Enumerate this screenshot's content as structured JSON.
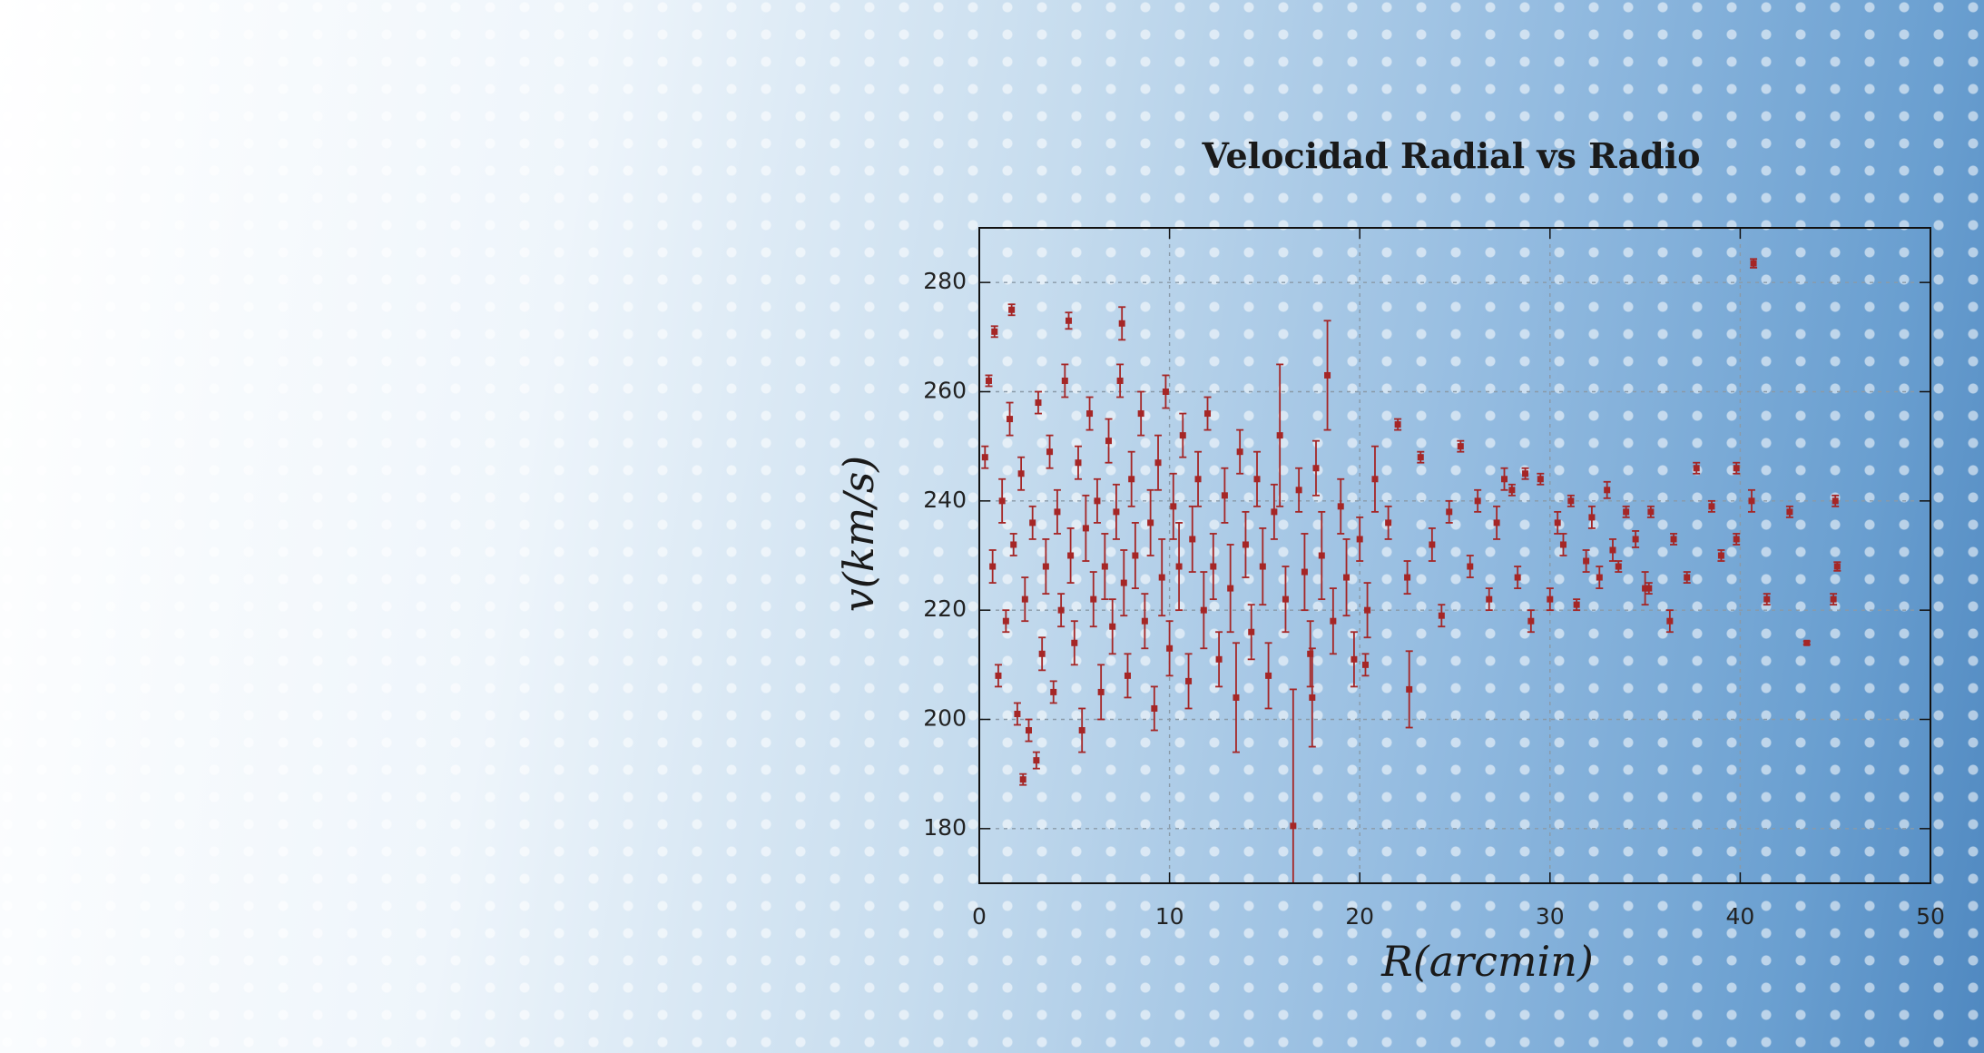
{
  "chart_data": {
    "type": "scatter",
    "title": "Velocidad Radial vs Radio",
    "x_label": "R(arcmin)",
    "y_label": "v(km/s)",
    "color": "#a52626",
    "grid": true,
    "xlim": [
      0,
      50
    ],
    "xticks": [
      0,
      10,
      20,
      30,
      40,
      50
    ],
    "ylim": [
      170,
      290
    ],
    "yticks": [
      180,
      200,
      220,
      240,
      260,
      280
    ],
    "x": [
      0.3,
      0.5,
      0.7,
      1,
      1.2,
      1.4,
      1.6,
      1.8,
      2,
      2.2,
      2.4,
      2.6,
      2.8,
      3.1,
      3.3,
      3.5,
      3.7,
      3.9,
      4.1,
      4.3,
      4.5,
      4.8,
      5,
      5.2,
      5.4,
      5.6,
      5.8,
      6,
      6.2,
      6.4,
      6.6,
      6.8,
      7,
      7.2,
      7.4,
      7.6,
      7.8,
      8,
      8.2,
      8.5,
      8.7,
      9,
      9.2,
      9.4,
      9.6,
      9.8,
      10,
      10.2,
      10.5,
      10.7,
      11,
      11.2,
      11.5,
      11.8,
      12,
      12.3,
      12.6,
      12.9,
      13.2,
      13.5,
      13.7,
      14,
      14.3,
      14.6,
      14.9,
      15.2,
      15.5,
      15.8,
      16.1,
      16.5,
      16.8,
      17.1,
      17.4,
      17.7,
      18,
      18.3,
      18.6,
      19,
      19.3,
      19.7,
      20,
      20.4,
      20.8,
      0.8,
      1.7,
      4.7,
      7.5,
      2.3,
      3,
      17.5,
      22.6,
      20.3,
      43.5,
      40.7,
      21.5,
      22,
      22.5,
      23.2,
      23.8,
      24.3,
      24.7,
      25.3,
      25.8,
      26.2,
      26.8,
      27.2,
      27.6,
      28,
      28.3,
      28.7,
      29,
      29.5,
      30,
      30.4,
      30.7,
      31.1,
      31.4,
      31.9,
      32.2,
      32.6,
      33,
      33.3,
      33.6,
      34,
      34.5,
      35,
      35.2,
      35.3,
      36.3,
      36.5,
      37.2,
      37.7,
      38.5,
      39,
      39.8,
      39.8,
      40.6,
      41.4,
      42.6,
      44.9,
      45,
      45.1
    ],
    "values": [
      248,
      262,
      228,
      208,
      240,
      218,
      255,
      232,
      201,
      245,
      222,
      198,
      236,
      258,
      212,
      228,
      249,
      205,
      238,
      220,
      262,
      230,
      214,
      247,
      198,
      235,
      256,
      222,
      240,
      205,
      228,
      251,
      217,
      238,
      262,
      225,
      208,
      244,
      230,
      256,
      218,
      236,
      202,
      247,
      226,
      260,
      213,
      239,
      228,
      252,
      207,
      233,
      244,
      220,
      256,
      228,
      211,
      241,
      224,
      204,
      249,
      232,
      216,
      244,
      228,
      208,
      238,
      252,
      222,
      180.5,
      242,
      227,
      212,
      246,
      230,
      263,
      218,
      239,
      226,
      211,
      233,
      220,
      244,
      271,
      275,
      273,
      272.5,
      189,
      192.5,
      204,
      205.5,
      210,
      214,
      283.5,
      236,
      254,
      226,
      248,
      232,
      219,
      238,
      250,
      228,
      240,
      222,
      236,
      244,
      242,
      226,
      245,
      218,
      244,
      222,
      236,
      232,
      240,
      221,
      229,
      237,
      226,
      242,
      231,
      228,
      238,
      233,
      224,
      224,
      238,
      218,
      233,
      226,
      246,
      239,
      230,
      233,
      246,
      240,
      222,
      238,
      222,
      240,
      228
    ],
    "errors": [
      2,
      1,
      3,
      2,
      4,
      2,
      3,
      2,
      2,
      3,
      4,
      2,
      3,
      2,
      3,
      5,
      3,
      2,
      4,
      3,
      3,
      5,
      4,
      3,
      4,
      6,
      3,
      5,
      4,
      5,
      6,
      4,
      5,
      5,
      3,
      6,
      4,
      5,
      6,
      4,
      5,
      6,
      4,
      5,
      7,
      3,
      5,
      6,
      8,
      4,
      5,
      6,
      5,
      7,
      3,
      6,
      5,
      5,
      8,
      10,
      4,
      6,
      5,
      5,
      7,
      6,
      5,
      13,
      6,
      25,
      4,
      7,
      6,
      5,
      8,
      10,
      6,
      5,
      7,
      5,
      4,
      5,
      6,
      1,
      1,
      1.5,
      3,
      1,
      1.5,
      9,
      7,
      2,
      0.3,
      0.8,
      3,
      1,
      3,
      1,
      3,
      2,
      2,
      1,
      2,
      2,
      2,
      3,
      2,
      1,
      2,
      1,
      2,
      1,
      2,
      2,
      2,
      1,
      1,
      2,
      2,
      2,
      1.5,
      2,
      1,
      1,
      1.5,
      3,
      1,
      1,
      2,
      1,
      1,
      1,
      1,
      1,
      1,
      1,
      2,
      1,
      1,
      1,
      1,
      0.8
    ]
  }
}
